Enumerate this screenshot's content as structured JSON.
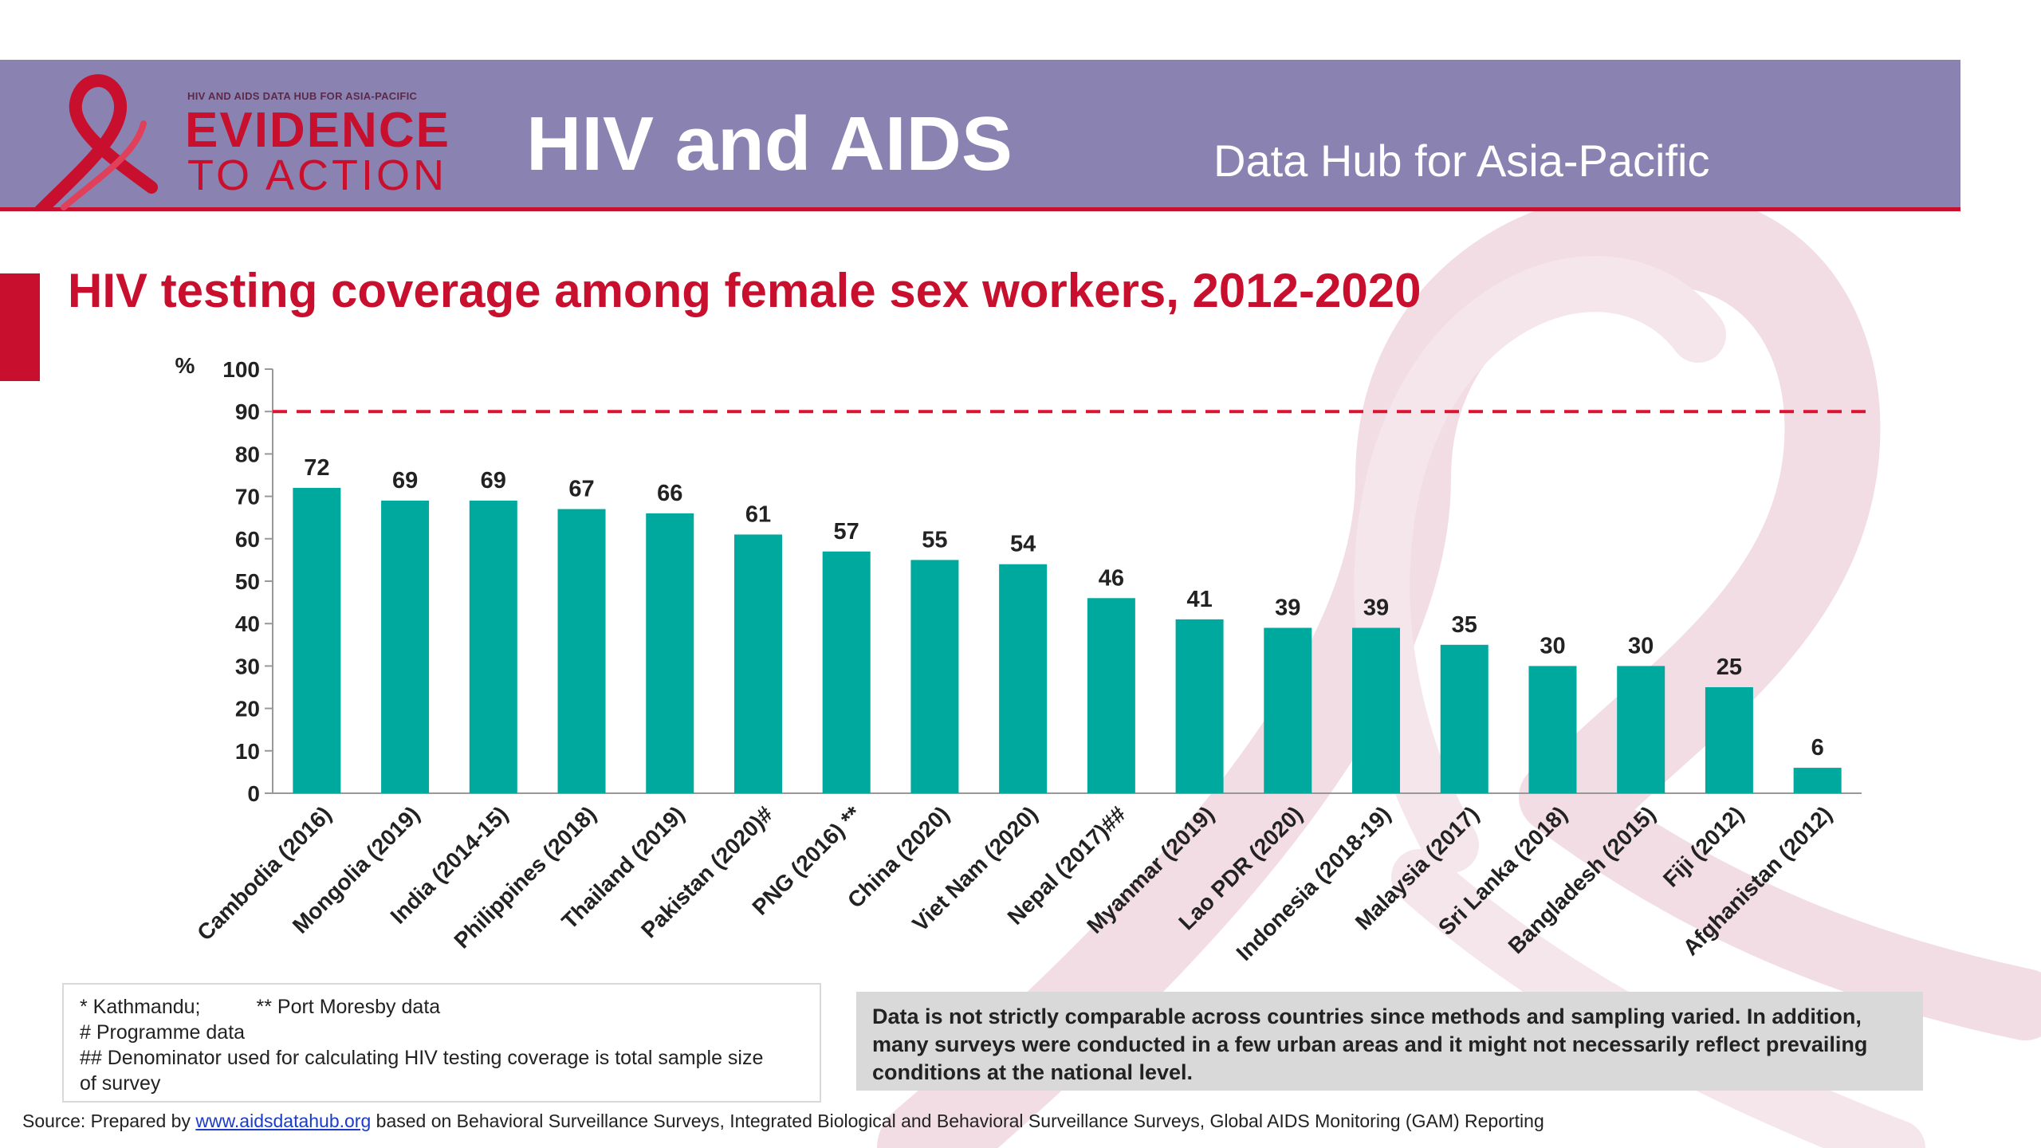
{
  "header": {
    "logo_small": "HIV AND AIDS DATA HUB FOR ASIA-PACIFIC",
    "logo_line1": "EVIDENCE",
    "logo_line2": "TO ACTION",
    "title": "HIV and AIDS",
    "subtitle": "Data Hub for Asia-Pacific"
  },
  "colors": {
    "header_bg": "#8a83b2",
    "accent_red": "#c8102e",
    "bar": "#00a99d",
    "ribbon_pink": "#f2dde4",
    "caveat_bg": "#d9d9d9"
  },
  "chart_data": {
    "type": "bar",
    "title": "HIV testing coverage among female sex workers, 2012-2020",
    "ylabel": "%",
    "ylim": [
      0,
      100
    ],
    "yticks": [
      0,
      10,
      20,
      30,
      40,
      50,
      60,
      70,
      80,
      90,
      100
    ],
    "target_line": 90,
    "categories": [
      "Cambodia (2016)",
      "Mongolia (2019)",
      "India (2014-15)",
      "Philippines (2018)",
      "Thailand (2019)",
      "Pakistan (2020)#",
      "PNG (2016) **",
      "China (2020)",
      "Viet Nam (2020)",
      "Nepal (2017)##",
      "Myanmar (2019)",
      "Lao PDR (2020)",
      "Indonesia (2018-19)",
      "Malaysia (2017)",
      "Sri Lanka (2018)",
      "Bangladesh (2015)",
      "Fiji (2012)",
      "Afghanistan (2012)"
    ],
    "values": [
      72,
      69,
      69,
      67,
      66,
      61,
      57,
      55,
      54,
      46,
      41,
      39,
      39,
      35,
      30,
      30,
      25,
      6
    ]
  },
  "notes": {
    "n1a": "* Kathmandu;",
    "n1b": "** Port Moresby data",
    "n2": "# Programme data",
    "n3": "## Denominator used for calculating HIV testing coverage is total sample size",
    "n4": "of survey"
  },
  "caveat": "Data is not strictly comparable across countries since methods and sampling varied. In addition, many surveys were conducted in a few urban areas and it might not necessarily reflect prevailing conditions at the national level.",
  "source": {
    "prefix": "Source: Prepared by ",
    "link": "www.aidsdatahub.org",
    "suffix": " based on Behavioral Surveillance Surveys, Integrated Biological and Behavioral Surveillance Surveys, Global AIDS Monitoring (GAM) Reporting"
  }
}
